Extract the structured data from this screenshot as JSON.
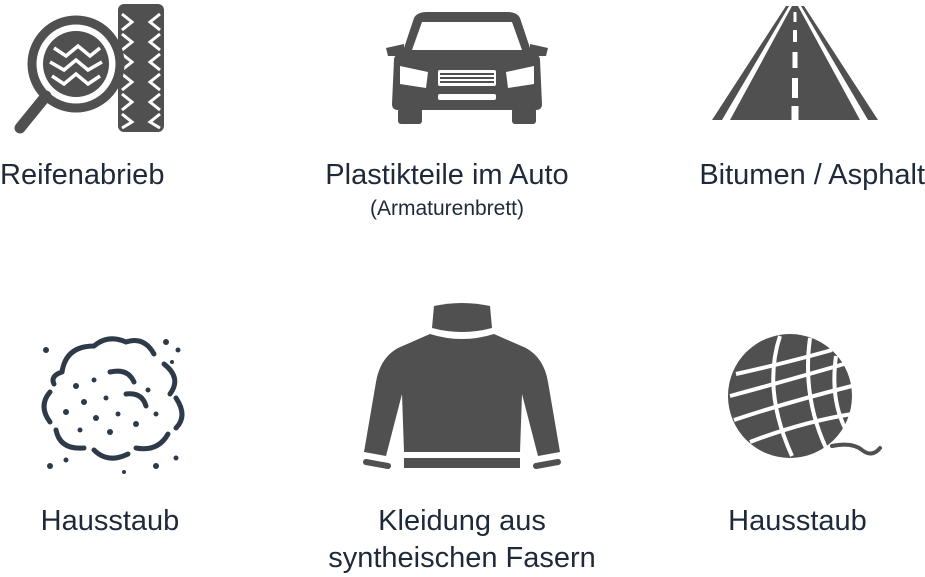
{
  "items": [
    {
      "label": "Reifenabrieb",
      "icon": "tire-magnifier-icon"
    },
    {
      "label": "Plastikteile im Auto",
      "sublabel": "(Armaturenbrett)",
      "icon": "car-front-icon"
    },
    {
      "label": "Bitumen / Asphalt",
      "icon": "road-icon"
    },
    {
      "label": "Hausstaub",
      "icon": "dust-cloud-icon"
    },
    {
      "label_line1": "Kleidung aus",
      "label_line2": "syntheischen Fasern",
      "icon": "sweater-icon"
    },
    {
      "label": "Hausstaub",
      "icon": "yarn-ball-icon"
    }
  ],
  "colors": {
    "icon": "#505050",
    "icon_dark": "#2e3a48",
    "text": "#1e2a3a"
  }
}
